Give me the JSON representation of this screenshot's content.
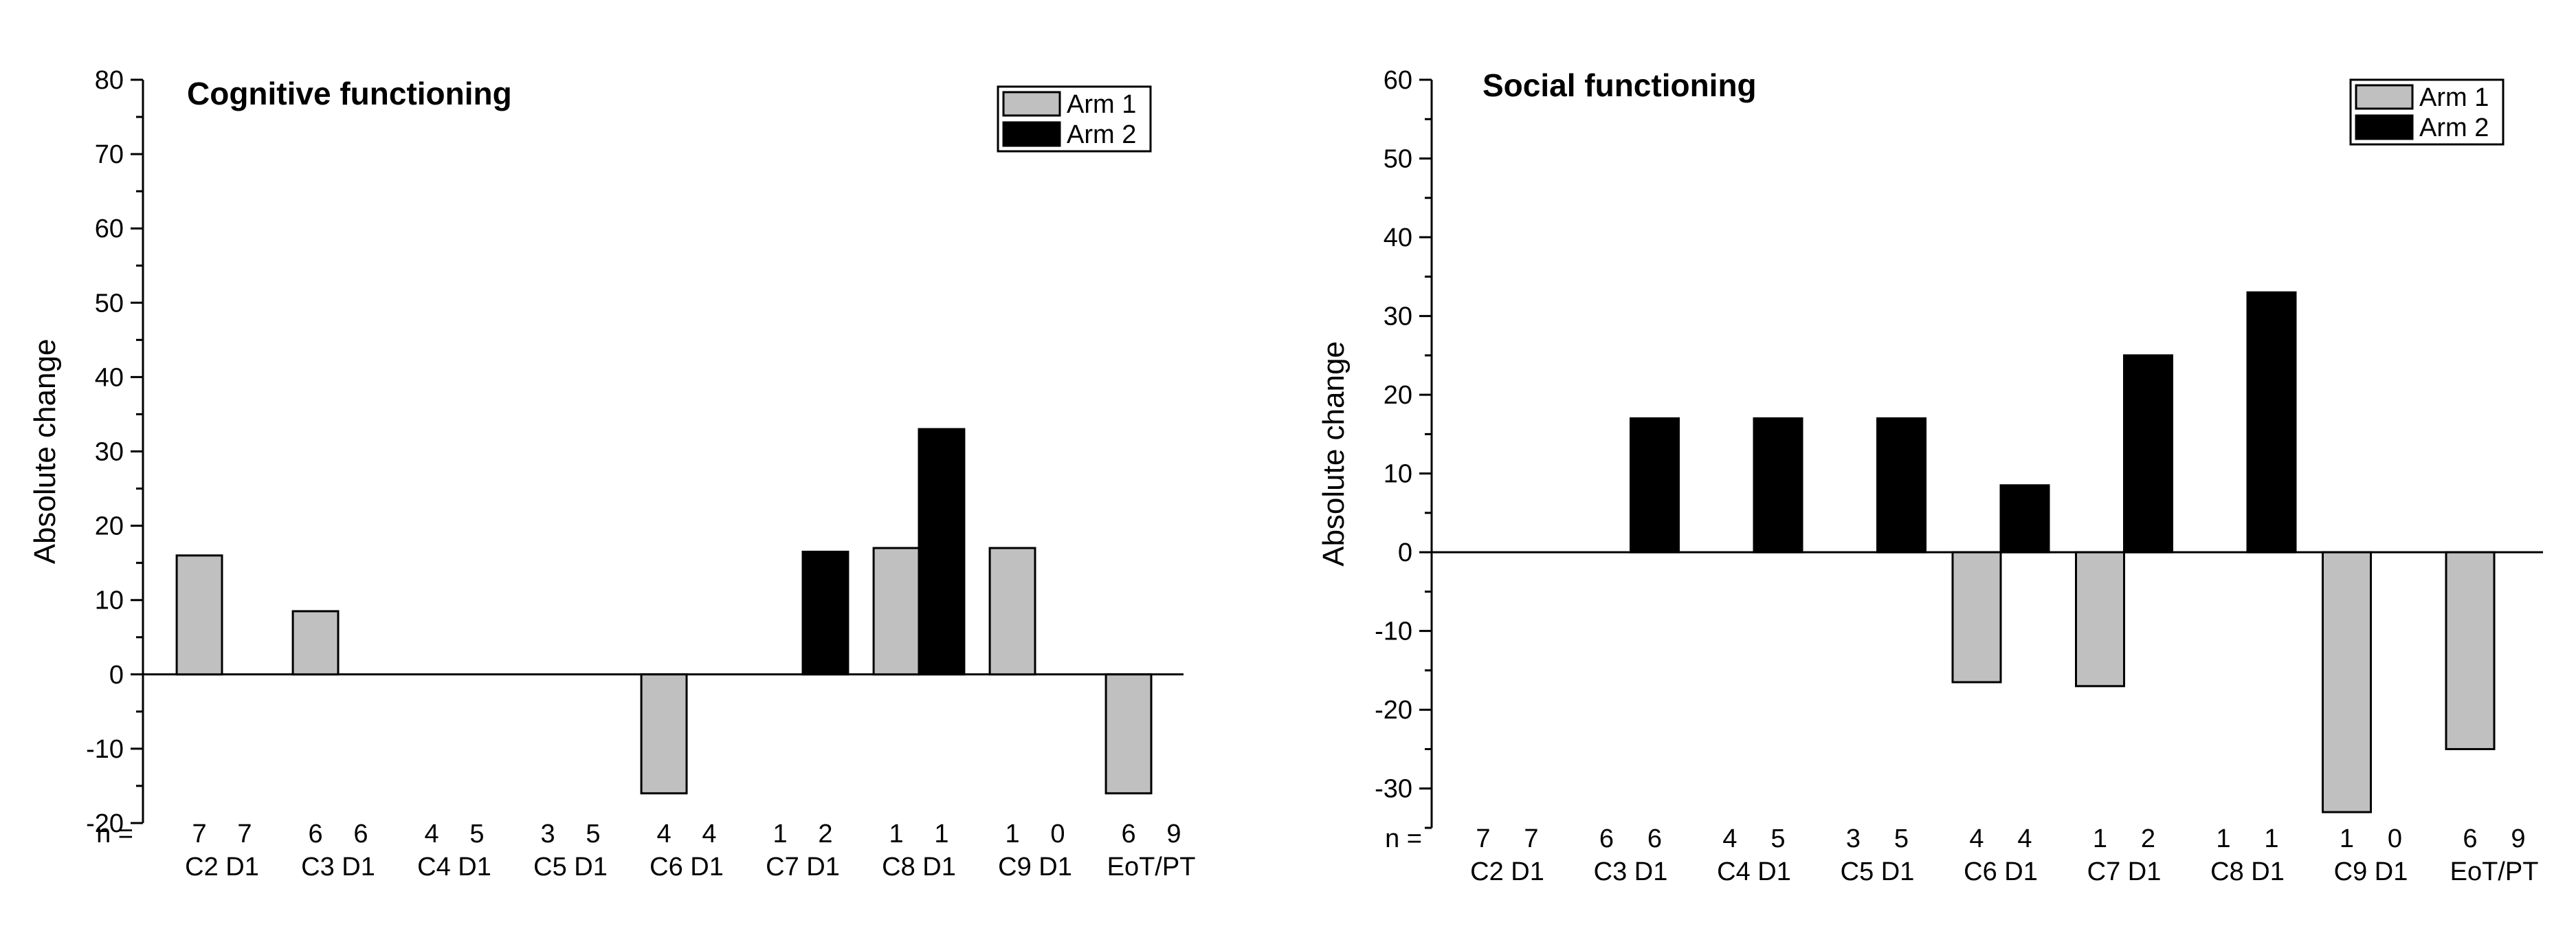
{
  "chart_data": [
    {
      "type": "bar",
      "title": "Cognitive functioning",
      "xlabel": "",
      "ylabel": "Absolute change",
      "ylim": [
        -20,
        80
      ],
      "yticks": [
        -20,
        -10,
        0,
        10,
        20,
        30,
        40,
        50,
        60,
        70,
        80
      ],
      "categories": [
        "C2 D1",
        "C3 D1",
        "C4 D1",
        "C5 D1",
        "C6 D1",
        "C7 D1",
        "C8 D1",
        "C9 D1",
        "EoT/PT"
      ],
      "n_label": "n =",
      "n_arm1": [
        "7",
        "6",
        "4",
        "3",
        "4",
        "1",
        "1",
        "1",
        "6"
      ],
      "n_arm2": [
        "7",
        "6",
        "5",
        "5",
        "4",
        "2",
        "1",
        "0",
        "9"
      ],
      "series": [
        {
          "name": "Arm 1",
          "color": "#c0c0c0",
          "values": [
            16,
            8.5,
            0,
            0,
            -16,
            0,
            17,
            17,
            -16
          ]
        },
        {
          "name": "Arm 2",
          "color": "#000000",
          "values": [
            0,
            0,
            0,
            0,
            0,
            16.5,
            33,
            0,
            0
          ]
        }
      ],
      "legend": "top-right"
    },
    {
      "type": "bar",
      "title": "Social functioning",
      "xlabel": "",
      "ylabel": "Absolute change",
      "ylim": [
        -35,
        60
      ],
      "yticks": [
        -30,
        -20,
        -10,
        0,
        10,
        20,
        30,
        40,
        50,
        60
      ],
      "categories": [
        "C2 D1",
        "C3 D1",
        "C4 D1",
        "C5 D1",
        "C6 D1",
        "C7 D1",
        "C8 D1",
        "C9 D1",
        "EoT/PT"
      ],
      "n_label": "n =",
      "n_arm1": [
        "7",
        "6",
        "4",
        "3",
        "4",
        "1",
        "1",
        "1",
        "6"
      ],
      "n_arm2": [
        "7",
        "6",
        "5",
        "5",
        "4",
        "2",
        "1",
        "0",
        "9"
      ],
      "series": [
        {
          "name": "Arm 1",
          "color": "#c0c0c0",
          "values": [
            0,
            0,
            0,
            0,
            -16.5,
            -17,
            0,
            -33,
            -25
          ]
        },
        {
          "name": "Arm 2",
          "color": "#000000",
          "values": [
            0,
            17,
            17,
            17,
            8.5,
            25,
            33,
            0,
            0
          ]
        }
      ],
      "legend": "top-right"
    }
  ]
}
